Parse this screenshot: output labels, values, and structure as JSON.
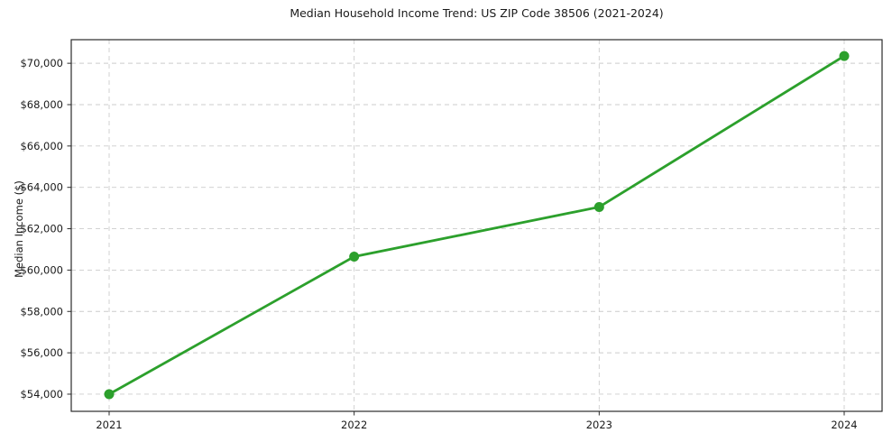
{
  "title": "Median Household Income Trend: US ZIP Code 38506 (2021-2024)",
  "chart_data": {
    "type": "line",
    "title": "Median Household Income Trend: US ZIP Code 38506 (2021-2024)",
    "xlabel": "",
    "ylabel": "Median Income ($)",
    "categories": [
      "2021",
      "2022",
      "2023",
      "2024"
    ],
    "series": [
      {
        "name": "Median Household Income",
        "values": [
          54000,
          60650,
          63050,
          70350
        ]
      }
    ],
    "yticks": [
      54000,
      56000,
      58000,
      60000,
      62000,
      64000,
      66000,
      68000,
      70000
    ],
    "ytick_labels": [
      "$54,000",
      "$56,000",
      "$58,000",
      "$60,000",
      "$62,000",
      "$64,000",
      "$66,000",
      "$68,000",
      "$70,000"
    ],
    "ylim": [
      53170,
      71140
    ],
    "grid": true,
    "grid_style": "dashed",
    "legend_position": "none"
  },
  "colors": {
    "line": "#2ca02c",
    "marker": "#2ca02c",
    "grid": "#cccccc",
    "spine": "#2b2b2b",
    "text": "#1a1a1a",
    "background": "#ffffff"
  }
}
